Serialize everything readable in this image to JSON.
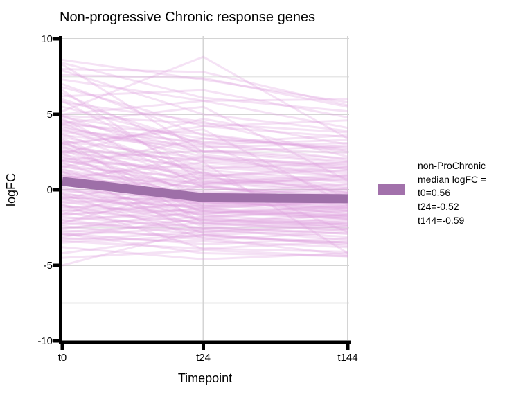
{
  "title": "Non-progressive Chronic response genes",
  "axes": {
    "y_label": "logFC",
    "x_label": "Timepoint",
    "y_ticks": [
      "10",
      "5",
      "0",
      "-5",
      "-10"
    ],
    "x_ticks": [
      "t0",
      "t24",
      "t144"
    ]
  },
  "legend": {
    "lines": [
      "non-ProChronic",
      "median logFC =",
      "t0=0.56",
      "t24=-0.52",
      "t144=-0.59"
    ],
    "swatch_color": "#A271AB"
  },
  "colors": {
    "background": "#FFFFFF",
    "grid_major": "#D4D4D4",
    "grid_minor": "#E7E7E7",
    "axis": "#000000",
    "gene_line": "#DDA0DD",
    "median_line": "#9E6FA8"
  },
  "chart_data": {
    "type": "line",
    "title": "Non-progressive Chronic response genes",
    "xlabel": "Timepoint",
    "ylabel": "logFC",
    "x_categories": [
      "t0",
      "t24",
      "t144"
    ],
    "ylim": [
      -10,
      10
    ],
    "y_major_ticks": [
      10,
      5,
      0,
      -5,
      -10
    ],
    "y_minor_gridlines": [
      7.5,
      2.5,
      -2.5,
      -7.5
    ],
    "grid": true,
    "legend_position": "right",
    "median_series": {
      "name": "non-ProChronic median logFC",
      "values": [
        0.56,
        -0.52,
        -0.59
      ],
      "color": "#9E6FA8"
    },
    "background_line_alpha": 0.3,
    "background_line_color": "#DDA0DD",
    "gene_lines_approximate": [
      [
        4.9,
        1.8,
        1.2
      ],
      [
        4.6,
        2.6,
        2.1
      ],
      [
        4.4,
        0.9,
        1.5
      ],
      [
        4.2,
        2.2,
        0.8
      ],
      [
        4.0,
        1.1,
        -0.2
      ],
      [
        3.8,
        2.9,
        2.4
      ],
      [
        3.7,
        0.4,
        0.9
      ],
      [
        3.5,
        1.6,
        1.1
      ],
      [
        3.4,
        -0.6,
        -1.2
      ],
      [
        3.2,
        2.1,
        1.7
      ],
      [
        3.1,
        0.2,
        -0.5
      ],
      [
        3.0,
        1.3,
        0.6
      ],
      [
        2.9,
        -1.1,
        -0.7
      ],
      [
        2.8,
        1.9,
        1.4
      ],
      [
        2.7,
        0.7,
        0.1
      ],
      [
        2.6,
        -0.3,
        0.4
      ],
      [
        2.5,
        1.5,
        0.9
      ],
      [
        2.4,
        -1.5,
        -1.9
      ],
      [
        2.3,
        0.9,
        1.3
      ],
      [
        2.2,
        -0.8,
        -1.4
      ],
      [
        2.1,
        1.1,
        0.5
      ],
      [
        2.0,
        -0.1,
        -0.6
      ],
      [
        1.9,
        0.6,
        -0.1
      ],
      [
        1.8,
        -1.2,
        -0.8
      ],
      [
        1.7,
        0.3,
        0.8
      ],
      [
        1.6,
        -0.5,
        -1.1
      ],
      [
        1.5,
        0.8,
        0.2
      ],
      [
        1.4,
        -1.8,
        -1.3
      ],
      [
        1.3,
        0.1,
        -0.4
      ],
      [
        1.2,
        -0.9,
        -0.2
      ],
      [
        1.1,
        0.5,
        1.0
      ],
      [
        1.0,
        -1.4,
        -1.8
      ],
      [
        0.9,
        -0.2,
        -0.7
      ],
      [
        0.8,
        -2.1,
        -1.6
      ],
      [
        0.7,
        0.2,
        -0.3
      ],
      [
        0.6,
        -1.0,
        -1.5
      ],
      [
        0.5,
        -0.4,
        0.1
      ],
      [
        0.4,
        -1.7,
        -2.2
      ],
      [
        0.3,
        -0.6,
        -1.0
      ],
      [
        0.2,
        -2.4,
        -2.0
      ],
      [
        0.1,
        -0.8,
        -0.4
      ],
      [
        0.0,
        -1.3,
        -1.7
      ],
      [
        -0.1,
        -0.5,
        -0.9
      ],
      [
        -0.2,
        -2.0,
        -2.5
      ],
      [
        -0.3,
        -0.9,
        -0.5
      ],
      [
        -0.4,
        -1.6,
        -1.2
      ],
      [
        -0.5,
        -0.7,
        -1.3
      ],
      [
        -0.6,
        -2.3,
        -1.9
      ],
      [
        -0.7,
        -1.1,
        -0.6
      ],
      [
        -0.8,
        -1.9,
        -2.3
      ],
      [
        -0.9,
        -0.3,
        -0.8
      ],
      [
        -1.0,
        -2.6,
        -2.1
      ],
      [
        -1.1,
        -1.5,
        -1.1
      ],
      [
        -1.2,
        -0.6,
        -1.6
      ],
      [
        -1.3,
        -2.2,
        -2.6
      ],
      [
        -1.4,
        -1.0,
        -0.5
      ],
      [
        -1.5,
        -2.8,
        -2.4
      ],
      [
        -1.6,
        -1.3,
        -1.8
      ],
      [
        -1.7,
        -0.8,
        -1.2
      ],
      [
        -1.8,
        -2.5,
        -2.9
      ],
      [
        -1.9,
        -1.6,
        -1.0
      ],
      [
        -2.0,
        -3.0,
        -2.6
      ],
      [
        -2.1,
        -1.2,
        -1.7
      ],
      [
        -2.2,
        -2.7,
        -3.1
      ],
      [
        -2.3,
        -1.8,
        -1.4
      ],
      [
        -2.4,
        -3.3,
        -2.8
      ],
      [
        -2.5,
        -2.0,
        -2.4
      ],
      [
        -2.6,
        -1.4,
        -1.9
      ],
      [
        -2.7,
        -3.1,
        -3.5
      ],
      [
        -2.8,
        -2.2,
        -1.7
      ],
      [
        -2.9,
        -3.6,
        -3.2
      ],
      [
        -3.0,
        -2.5,
        -2.9
      ],
      [
        -3.1,
        -1.9,
        -2.3
      ],
      [
        -3.2,
        -3.4,
        -3.8
      ],
      [
        -3.3,
        -2.8,
        -2.2
      ],
      [
        -3.4,
        -3.9,
        -3.4
      ],
      [
        -3.5,
        -3.0,
        -3.6
      ],
      [
        4.8,
        3.4,
        2.8
      ],
      [
        4.5,
        3.0,
        3.3
      ],
      [
        4.3,
        3.7,
        2.5
      ],
      [
        4.1,
        2.5,
        2.9
      ],
      [
        3.9,
        3.2,
        2.0
      ],
      [
        3.6,
        2.8,
        3.1
      ],
      [
        2.6,
        2.0,
        1.6
      ],
      [
        1.9,
        1.4,
        1.8
      ],
      [
        0.9,
        0.4,
        0.7
      ],
      [
        -0.5,
        -1.2,
        -0.8
      ],
      [
        4.7,
        0.2,
        -0.8
      ],
      [
        3.3,
        -2.2,
        -2.7
      ],
      [
        2.0,
        2.6,
        1.9
      ],
      [
        8.6,
        7.3,
        5.8
      ],
      [
        8.4,
        6.1,
        5.2
      ],
      [
        7.6,
        7.4,
        5.5
      ],
      [
        7.3,
        5.9,
        6.0
      ],
      [
        5.2,
        8.8,
        3.4
      ],
      [
        7.9,
        5.0,
        3.9
      ],
      [
        6.8,
        4.2,
        4.6
      ],
      [
        6.2,
        6.6,
        4.8
      ],
      [
        5.8,
        4.5,
        2.2
      ],
      [
        5.5,
        3.1,
        3.6
      ],
      [
        5.0,
        5.9,
        4.1
      ],
      [
        -5.0,
        -2.6,
        -3.3
      ],
      [
        -3.8,
        -4.6,
        -4.2
      ],
      [
        -2.9,
        -4.2,
        -4.4
      ],
      [
        -1.0,
        -3.9,
        -4.1
      ],
      [
        -0.3,
        -3.2,
        -4.3
      ],
      [
        1.2,
        -2.9,
        -3.7
      ],
      [
        6.4,
        2.3,
        1.5
      ],
      [
        7.0,
        3.6,
        2.6
      ],
      [
        5.9,
        1.0,
        0.3
      ],
      [
        4.9,
        4.4,
        3.8
      ],
      [
        -4.2,
        -3.0,
        -3.5
      ],
      [
        -4.5,
        -4.0,
        -4.4
      ],
      [
        8.0,
        7.8,
        5.6
      ],
      [
        2.4,
        4.7,
        3.0
      ],
      [
        0.6,
        2.2,
        1.4
      ],
      [
        -1.6,
        0.8,
        0.0
      ],
      [
        3.0,
        4.2,
        3.5
      ],
      [
        -2.2,
        0.3,
        -0.9
      ],
      [
        1.5,
        3.4,
        2.7
      ],
      [
        4.4,
        5.5,
        0.6
      ],
      [
        3.1,
        4.0,
        -1.0
      ],
      [
        0.8,
        1.8,
        -4.2
      ],
      [
        6.0,
        3.0,
        -0.5
      ],
      [
        -0.6,
        1.2,
        -2.8
      ],
      [
        8.3,
        2.5,
        1.8
      ],
      [
        6.6,
        0.5,
        -0.2
      ]
    ]
  }
}
